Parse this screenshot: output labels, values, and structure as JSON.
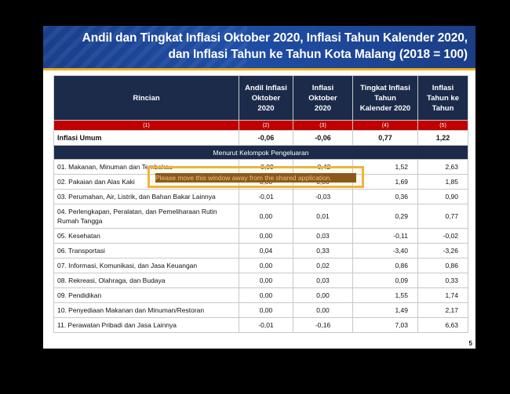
{
  "title_line1": "Andil dan Tingkat Inflasi Oktober 2020, Inflasi Tahun Kalender 2020,",
  "title_line2": "dan Inflasi Tahun ke Tahun Kota Malang (2018 = 100)",
  "headers": {
    "rincian": "Rincian",
    "andil_l1": "Andil Inflasi",
    "andil_l2": "Oktober",
    "andil_l3": "2020",
    "inflasi_l1": "Inflasi",
    "inflasi_l2": "Oktober",
    "inflasi_l3": "2020",
    "tingkat_l1": "Tingkat Inflasi",
    "tingkat_l2": "Tahun",
    "tingkat_l3": "Kalender 2020",
    "yoy_l1": "Inflasi",
    "yoy_l2": "Tahun ke",
    "yoy_l3": "Tahun"
  },
  "column_numbers": [
    "(1)",
    "(2)",
    "(3)",
    "(4)",
    "(5)"
  ],
  "inflasi_umum": {
    "label": "Inflasi Umum",
    "andil": "-0,06",
    "inflasi": "-0,06",
    "tingkat": "0,77",
    "yoy": "1,22"
  },
  "group_label": "Menurut Kelompok Pengeluaran",
  "rows": [
    {
      "label": "01. Makanan, Minuman dan Tembakau",
      "andil": "-0,09",
      "inflasi": "-0,42",
      "tingkat": "1,52",
      "yoy": "2,63"
    },
    {
      "label": "02. Pakaian dan Alas Kaki",
      "andil": "0,00",
      "inflasi": "0,00",
      "tingkat": "1,69",
      "yoy": "1,85"
    },
    {
      "label": "03. Perumahan, Air, Listrik, dan Bahan Bakar Lainnya",
      "andil": "-0,01",
      "inflasi": "-0,03",
      "tingkat": "0,36",
      "yoy": "0,90"
    },
    {
      "label": "04. Perlengkapan, Peralatan, dan Pemeliharaan Rutin Rumah Tangga",
      "andil": "0,00",
      "inflasi": "0,01",
      "tingkat": "0,29",
      "yoy": "0,77"
    },
    {
      "label": "05. Kesehatan",
      "andil": "0,00",
      "inflasi": "0,03",
      "tingkat": "-0,11",
      "yoy": "-0,02"
    },
    {
      "label": "06. Transportasi",
      "andil": "0,04",
      "inflasi": "0,33",
      "tingkat": "-3,40",
      "yoy": "-3,26"
    },
    {
      "label": "07. Informasi, Komunikasi, dan Jasa Keuangan",
      "andil": "0,00",
      "inflasi": "0,02",
      "tingkat": "0,86",
      "yoy": "0,86"
    },
    {
      "label": "08. Rekreasi, Olahraga, dan Budaya",
      "andil": "0,00",
      "inflasi": "0,03",
      "tingkat": "0,09",
      "yoy": "0,33"
    },
    {
      "label": "09. Pendidikan",
      "andil": "0,00",
      "inflasi": "0,00",
      "tingkat": "1,55",
      "yoy": "1,74"
    },
    {
      "label": "10. Penyediaan Makanan dan Minuman/Restoran",
      "andil": "0,00",
      "inflasi": "0,00",
      "tingkat": "1,49",
      "yoy": "2,17"
    },
    {
      "label": "11. Perawatan Pribadi dan Jasa Lainnya",
      "andil": "-0,01",
      "inflasi": "-0,16",
      "tingkat": "7,03",
      "yoy": "6,63"
    }
  ],
  "page_number": "5",
  "share_warning": "Please move this window away from the shared application.",
  "colors": {
    "banner": "#1f4ea6",
    "header": "#1c2b4a",
    "number_row": "#c00000",
    "warning_border": "#f0b43a"
  }
}
